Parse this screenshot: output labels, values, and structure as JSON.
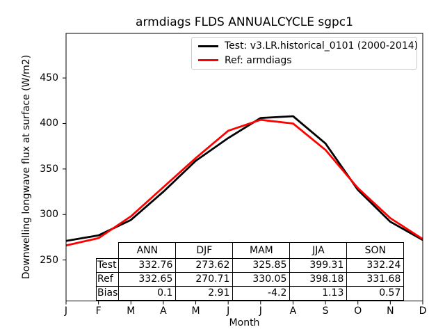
{
  "title": "armdiags FLDS ANNUALCYCLE sgpc1",
  "chart_data": {
    "type": "line",
    "x": [
      "J",
      "F",
      "M",
      "A",
      "M",
      "J",
      "J",
      "A",
      "S",
      "O",
      "N",
      "D"
    ],
    "xlabel": "Month",
    "ylabel": "Downwelling longwave flux at surface (W/m2)",
    "ylim": [
      205,
      499
    ],
    "y_ticks": [
      250,
      300,
      350,
      400,
      450
    ],
    "grid": false,
    "legend_position": "upper right",
    "series": [
      {
        "name": "Test: v3.LR.historical_0101 (2000-2014)",
        "color": "#000000",
        "values": [
          271,
          277,
          294,
          325,
          359,
          384,
          406,
          408,
          378,
          327,
          292,
          272
        ]
      },
      {
        "name": "Ref: armdiags",
        "color": "#ff0000",
        "values": [
          266,
          274,
          298,
          330,
          362,
          392,
          404,
          400,
          371,
          329,
          296,
          273
        ]
      }
    ],
    "stats_table": {
      "columns": [
        "ANN",
        "DJF",
        "MAM",
        "JJA",
        "SON"
      ],
      "rows": [
        {
          "label": "Test",
          "values": [
            "332.76",
            "273.62",
            "325.85",
            "399.31",
            "332.24"
          ]
        },
        {
          "label": "Ref",
          "values": [
            "332.65",
            "270.71",
            "330.05",
            "398.18",
            "331.68"
          ]
        },
        {
          "label": "Bias",
          "values": [
            "0.1",
            "2.91",
            "-4.2",
            "1.13",
            "0.57"
          ]
        }
      ]
    }
  }
}
